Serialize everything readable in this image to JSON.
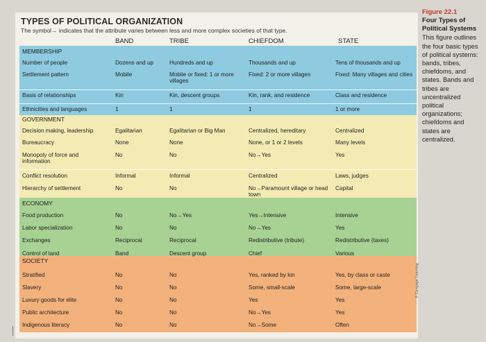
{
  "table": {
    "title": "TYPES OF POLITICAL ORGANIZATION",
    "subtitle": "The symbol→ indicates that the attribute varies between less and more complex societies of that type.",
    "columns": [
      "BAND",
      "TRIBE",
      "CHIEFDOM",
      "STATE"
    ],
    "sections": [
      {
        "name": "MEMBERSHIP",
        "rows": [
          {
            "attribute": "Number of people",
            "values": [
              "Dozens and up",
              "Hundreds and up",
              "Thousands and up",
              "Tens of thousands and up"
            ]
          },
          {
            "attribute": "Settlement pattern",
            "values": [
              "Mobile",
              "Mobile or fixed: 1 or more villages",
              "Fixed: 2 or more villages",
              "Fixed: Many villages and cities"
            ]
          },
          {
            "attribute": "Basis of relationships",
            "values": [
              "Kin",
              "Kin, descent groups",
              "Kin, rank, and residence",
              "Class and residence"
            ]
          },
          {
            "attribute": "Ethnicities and languages",
            "values": [
              "1",
              "1",
              "1",
              "1 or more"
            ]
          }
        ]
      },
      {
        "name": "GOVERNMENT",
        "rows": [
          {
            "attribute": "Decision making, leadership",
            "values": [
              "Egalitarian",
              "Egalitarian or Big Man",
              "Centralized, hereditary",
              "Centralized"
            ]
          },
          {
            "attribute": "Bureaucracy",
            "values": [
              "None",
              "None",
              "None, or 1 or 2 levels",
              "Many levels"
            ]
          },
          {
            "attribute": "Monopoly of force and information",
            "values": [
              "No",
              "No",
              "No→Yes",
              "Yes"
            ]
          },
          {
            "attribute": "Conflict resolution",
            "values": [
              "Informal",
              "Informal",
              "Centralized",
              "Laws, judges"
            ]
          },
          {
            "attribute": "Hierarchy of settlement",
            "values": [
              "No",
              "No",
              "No→Paramount village or head town",
              "Capital"
            ]
          }
        ]
      },
      {
        "name": "ECONOMY",
        "rows": [
          {
            "attribute": "Food production",
            "values": [
              "No",
              "No→Yes",
              "Yes→Intensive",
              "Intensive"
            ]
          },
          {
            "attribute": "Labor specialization",
            "values": [
              "No",
              "No",
              "No→Yes",
              "Yes"
            ]
          },
          {
            "attribute": "Exchanges",
            "values": [
              "Reciprocal",
              "Reciprocal",
              "Redistributive (tribute)",
              "Redistributive (taxes)"
            ]
          },
          {
            "attribute": "Control of land",
            "values": [
              "Band",
              "Descent group",
              "Chief",
              "Various"
            ]
          }
        ]
      },
      {
        "name": "SOCIETY",
        "rows": [
          {
            "attribute": "Stratified",
            "values": [
              "No",
              "No",
              "Yes, ranked by kin",
              "Yes, by class or caste"
            ]
          },
          {
            "attribute": "Slavery",
            "values": [
              "No",
              "No",
              "Some, small-scale",
              "Some, large-scale"
            ]
          },
          {
            "attribute": "Luxury goods for elite",
            "values": [
              "No",
              "No",
              "Yes",
              "Yes"
            ]
          },
          {
            "attribute": "Public architecture",
            "values": [
              "No",
              "No",
              "No→Yes",
              "Yes"
            ]
          },
          {
            "attribute": "Indigenous literacy",
            "values": [
              "No",
              "No",
              "No→Some",
              "Often"
            ]
          }
        ]
      }
    ]
  },
  "sidebar": {
    "figure_label": "Figure 22.1",
    "figure_title": "Four Types of Political Systems",
    "caption": "This figure outlines the four basic types of political systems: bands, tribes, chiefdoms, and states. Bands and tribes are uncentralized political organizations; chiefdoms and states are centralized."
  },
  "credit": "© Cengage Learning"
}
